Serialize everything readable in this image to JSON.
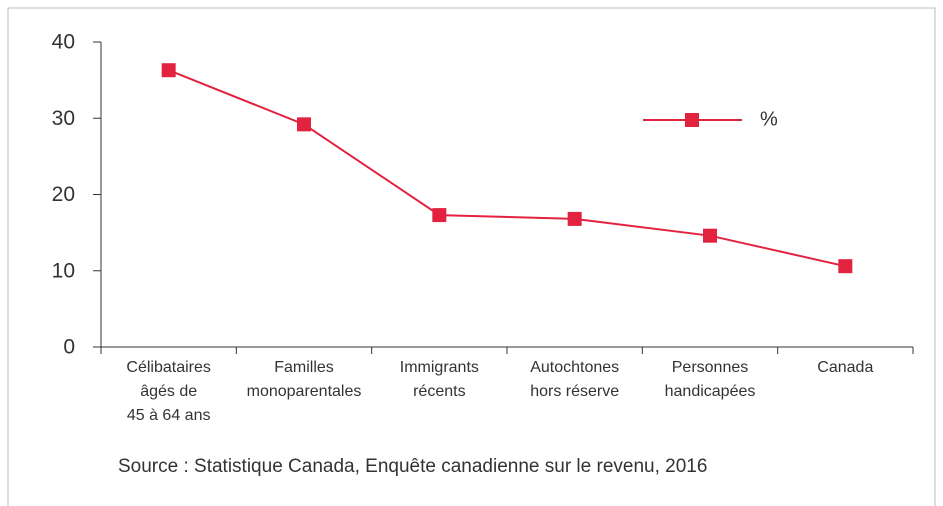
{
  "chart_data": {
    "type": "line",
    "categories": [
      [
        "Célibataires",
        "âgés de",
        "45 à 64 ans"
      ],
      [
        "Familles",
        "monoparentales"
      ],
      [
        "Immigrants",
        "récents"
      ],
      [
        "Autochtones",
        "hors réserve"
      ],
      [
        "Personnes",
        "handicapées"
      ],
      [
        "Canada"
      ]
    ],
    "series": [
      {
        "name": "%",
        "color": "#e2233f",
        "values": [
          36.3,
          29.2,
          17.3,
          16.8,
          14.6,
          10.6
        ]
      }
    ],
    "ylim": [
      0,
      40
    ],
    "yticks": [
      0,
      10,
      20,
      30,
      40
    ],
    "legend": "upper right",
    "source": "Source : Statistique Canada, Enquête canadienne sur le revenu, 2016"
  }
}
